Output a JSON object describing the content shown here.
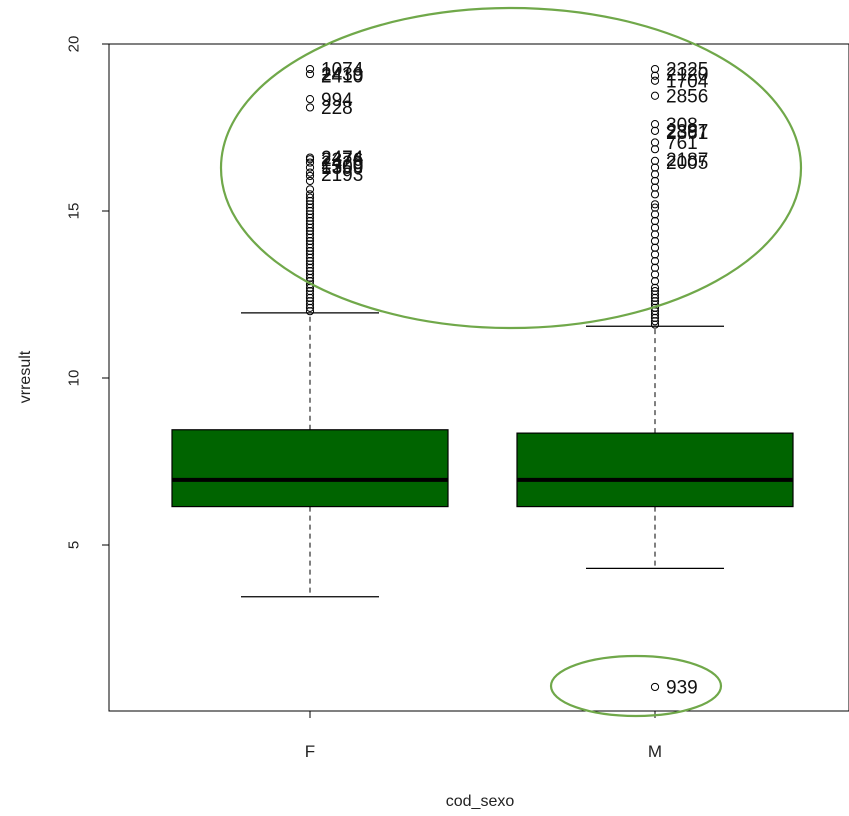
{
  "chart_data": {
    "type": "boxplot",
    "title": "",
    "xlabel": "cod_sexo",
    "ylabel": "vrresult",
    "ylim": [
      0,
      20
    ],
    "yticks": [
      5,
      10,
      15,
      20
    ],
    "grid": false,
    "box_color": "#006400",
    "categories": [
      "F",
      "M"
    ],
    "boxes": [
      {
        "category": "F",
        "whisker_low": 3.45,
        "q1": 6.15,
        "median": 6.95,
        "q3": 8.45,
        "whisker_high": 11.95,
        "outliers": [
          12.0,
          12.1,
          12.2,
          12.3,
          12.4,
          12.5,
          12.6,
          12.7,
          12.8,
          12.9,
          13.0,
          13.1,
          13.2,
          13.3,
          13.4,
          13.5,
          13.6,
          13.7,
          13.8,
          13.9,
          14.0,
          14.1,
          14.2,
          14.3,
          14.4,
          14.5,
          14.6,
          14.7,
          14.8,
          14.9,
          15.0,
          15.1,
          15.2,
          15.3,
          15.4,
          15.5,
          15.65,
          15.9,
          16.05,
          16.15,
          16.3,
          16.45,
          16.55,
          16.6,
          18.1,
          18.35,
          19.1,
          19.25
        ],
        "labeled_outliers": [
          {
            "label": "1074",
            "y": 19.25
          },
          {
            "label": "2439",
            "y": 19.1
          },
          {
            "label": "2410",
            "y": 19.05
          },
          {
            "label": "994",
            "y": 18.35
          },
          {
            "label": "228",
            "y": 18.1
          },
          {
            "label": "2474",
            "y": 16.6
          },
          {
            "label": "2376",
            "y": 16.55
          },
          {
            "label": "2420",
            "y": 16.45
          },
          {
            "label": "1500",
            "y": 16.35
          },
          {
            "label": "1359",
            "y": 16.3
          },
          {
            "label": "2193",
            "y": 16.1
          }
        ]
      },
      {
        "category": "M",
        "whisker_low": 4.3,
        "q1": 6.15,
        "median": 6.95,
        "q3": 8.35,
        "whisker_high": 11.55,
        "outliers": [
          0.75,
          11.6,
          11.7,
          11.8,
          11.9,
          12.0,
          12.1,
          12.2,
          12.3,
          12.4,
          12.5,
          12.6,
          12.7,
          12.9,
          13.1,
          13.3,
          13.5,
          13.7,
          13.9,
          14.1,
          14.3,
          14.5,
          14.7,
          14.9,
          15.1,
          15.2,
          15.5,
          15.7,
          15.9,
          16.1,
          16.3,
          16.5,
          16.85,
          17.05,
          17.4,
          17.6,
          18.45,
          18.9,
          19.05,
          19.25
        ],
        "labeled_outliers": [
          {
            "label": "2325",
            "y": 19.25
          },
          {
            "label": "2120",
            "y": 19.1
          },
          {
            "label": "1704",
            "y": 18.9
          },
          {
            "label": "2856",
            "y": 18.45
          },
          {
            "label": "308",
            "y": 17.6
          },
          {
            "label": "2897",
            "y": 17.4
          },
          {
            "label": "2361",
            "y": 17.35
          },
          {
            "label": "761",
            "y": 17.05
          },
          {
            "label": "2187",
            "y": 16.55
          },
          {
            "label": "2005",
            "y": 16.45
          },
          {
            "label": "939",
            "y": 0.75
          }
        ]
      }
    ],
    "annotations": [
      {
        "shape": "ellipse",
        "color": "#70a84a",
        "region": "upper outliers of both groups"
      },
      {
        "shape": "ellipse",
        "color": "#70a84a",
        "region": "low outlier 939 in group M"
      }
    ]
  }
}
